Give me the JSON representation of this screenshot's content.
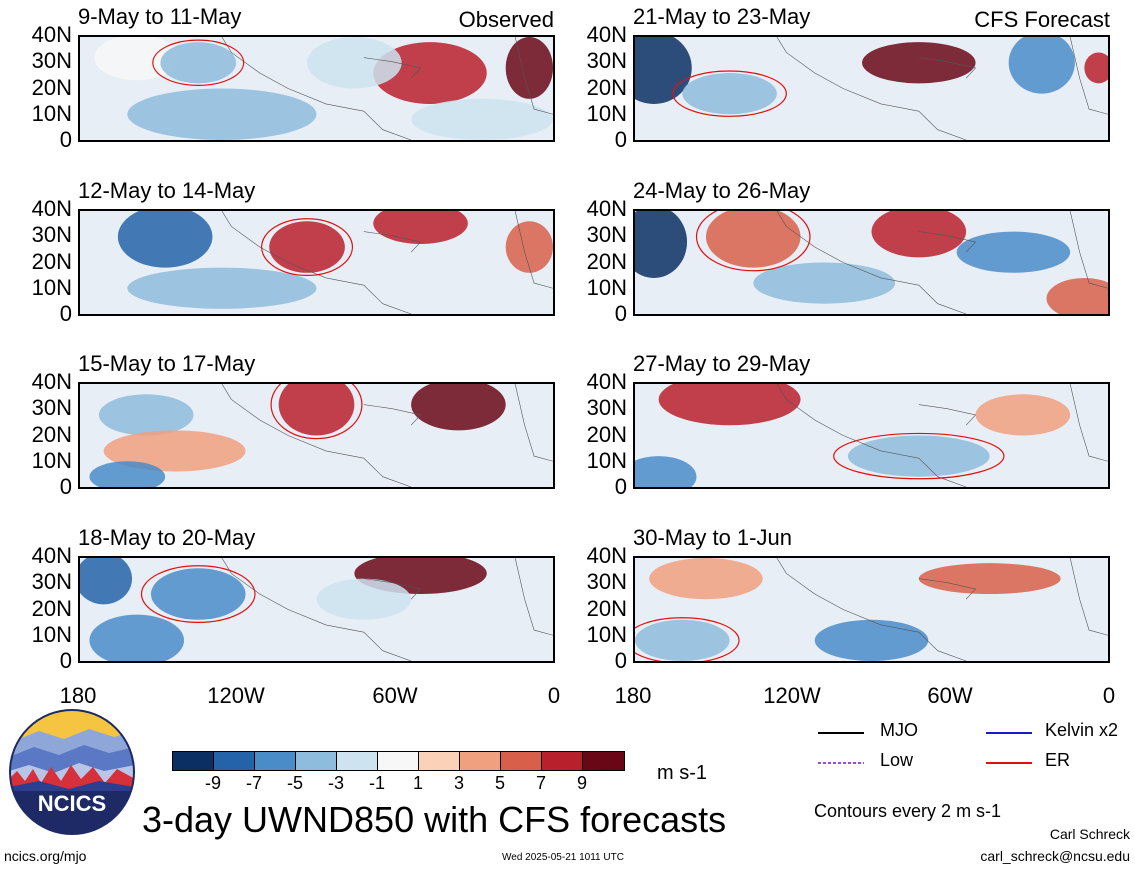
{
  "observed_label": "Observed",
  "forecast_label": "CFS Forecast",
  "observed_panels": [
    {
      "title": "9-May to 11-May"
    },
    {
      "title": "12-May to 14-May"
    },
    {
      "title": "15-May to 17-May"
    },
    {
      "title": "18-May to 20-May"
    }
  ],
  "forecast_panels": [
    {
      "title": "21-May to 23-May"
    },
    {
      "title": "24-May to 26-May"
    },
    {
      "title": "27-May to 29-May"
    },
    {
      "title": "30-May to 1-Jun"
    }
  ],
  "lat_labels": [
    "40N",
    "30N",
    "20N",
    "10N",
    "0"
  ],
  "lon_labels": [
    "180",
    "120W",
    "60W",
    "0"
  ],
  "colorbar": {
    "labels": [
      "-9",
      "-7",
      "-5",
      "-3",
      "-1",
      "1",
      "3",
      "5",
      "7",
      "9"
    ],
    "colors": [
      "#0b2f63",
      "#2563a8",
      "#4a8cc8",
      "#8ebcdc",
      "#cde3f0",
      "#f7f7f7",
      "#fbd2b8",
      "#f0a07e",
      "#d8604a",
      "#b8202c",
      "#6a0717"
    ],
    "units": "m s-1"
  },
  "legend": {
    "mjo": "MJO",
    "kelvin": "Kelvin x2",
    "low": "Low",
    "er": "ER",
    "colors": {
      "mjo": "#000000",
      "kelvin": "#1a1acc",
      "low": "#9b4dd8",
      "er": "#e01010"
    },
    "contours_note": "Contours every 2 m s-1"
  },
  "main_title": "3-day UWND850 with CFS forecasts",
  "logo_text": "NCICS",
  "footer": {
    "url": "ncics.org/mjo",
    "timestamp": "Wed 2025-05-21 1011 UTC",
    "author": "Carl Schreck",
    "email": "carl_schreck@ncsu.edu"
  }
}
